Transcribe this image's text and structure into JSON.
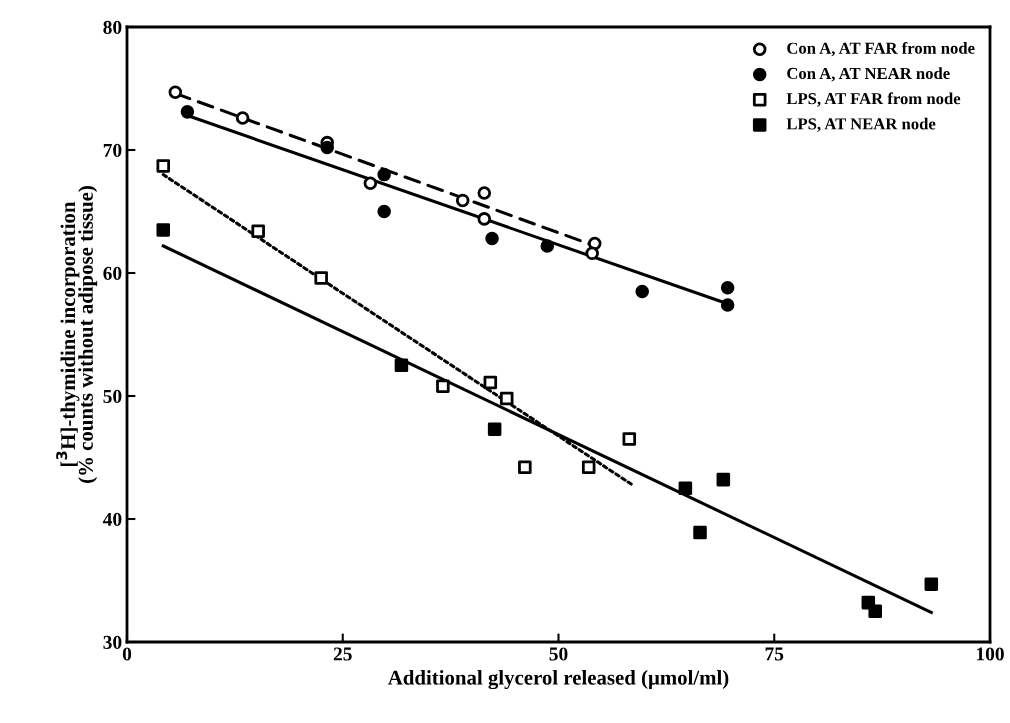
{
  "chart_data": {
    "type": "scatter",
    "xlabel": "Additional glycerol released (μmol/ml)",
    "ylabel": "[$^{3}$H]-thymidine incorporation\n(% counts without adipose tissue)",
    "xlim": [
      0,
      100
    ],
    "ylim": [
      30,
      80
    ],
    "xticks": [
      0,
      25,
      50,
      75,
      100
    ],
    "yticks": [
      30,
      40,
      50,
      60,
      70,
      80
    ],
    "grid": false,
    "legend": "top right",
    "series": [
      {
        "name": "Con A, AT FAR from node",
        "color": "#ffffff",
        "marker": "circle",
        "x": [
          5.6,
          13.4,
          23.2,
          28.2,
          38.9,
          41.4,
          41.4,
          54.2,
          53.9
        ],
        "values": [
          74.7,
          72.6,
          70.6,
          67.3,
          65.9,
          66.5,
          64.4,
          62.4,
          61.6
        ]
      },
      {
        "name": "Con A, AT NEAR node",
        "color": "#000000",
        "marker": "circle",
        "x": [
          7.0,
          23.2,
          29.8,
          29.8,
          42.3,
          48.7,
          59.7,
          69.6,
          69.6
        ],
        "values": [
          73.1,
          70.2,
          68.0,
          65.0,
          62.8,
          62.2,
          58.5,
          58.8,
          57.4
        ]
      },
      {
        "name": "LPS, AT FAR from node",
        "color": "#ffffff",
        "marker": "square",
        "x": [
          4.2,
          15.2,
          22.5,
          36.6,
          42.1,
          44.0,
          46.1,
          53.5,
          58.2
        ],
        "values": [
          68.7,
          63.4,
          59.6,
          50.8,
          51.1,
          49.8,
          44.2,
          44.2,
          46.5
        ]
      },
      {
        "name": "LPS, AT NEAR node",
        "color": "#000000",
        "marker": "square",
        "x": [
          4.2,
          31.8,
          42.6,
          64.7,
          66.4,
          69.1,
          85.9,
          86.7,
          93.2
        ],
        "values": [
          63.5,
          52.5,
          47.3,
          42.5,
          38.9,
          43.2,
          33.2,
          32.5,
          34.7
        ]
      },
      {
        "type": "line",
        "color": "#000000",
        "line_style": "dashed",
        "x": [
          5.6,
          54.2
        ],
        "values": [
          74.6,
          62.2
        ]
      },
      {
        "type": "line",
        "color": "#000000",
        "line_style": "solid",
        "x": [
          7.0,
          70.0
        ],
        "values": [
          72.8,
          57.4
        ]
      },
      {
        "type": "line",
        "color": "#000000",
        "line_style": "dotted",
        "x": [
          4.2,
          58.5
        ],
        "values": [
          68.0,
          42.8
        ]
      },
      {
        "type": "line",
        "color": "#000000",
        "line_style": "solid",
        "x": [
          4.2,
          93.2
        ],
        "values": [
          62.2,
          32.4
        ]
      }
    ]
  }
}
